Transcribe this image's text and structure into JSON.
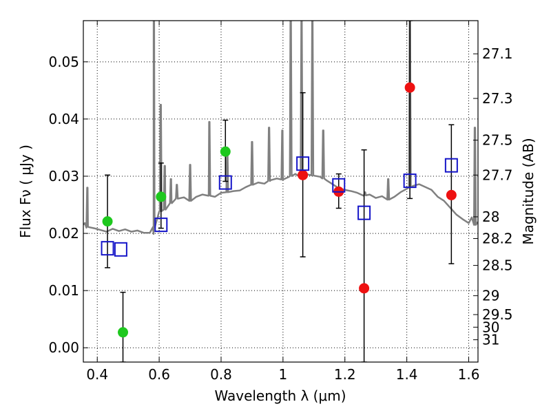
{
  "chart_data": {
    "type": "scatter",
    "xlabel": "Wavelength  λ (μm)",
    "ylabel": "Flux  Fν  ( μJy )",
    "ylabel_right": "Magnitude (AB)",
    "xlim": [
      0.355,
      1.63
    ],
    "ylim": [
      -0.0025,
      0.0572
    ],
    "x_ticks": [
      0.4,
      0.6,
      0.8,
      1.0,
      1.2,
      1.4,
      1.6
    ],
    "x_tick_labels": [
      "0.4",
      "0.6",
      "0.8",
      "1",
      "1.2",
      "1.4",
      "1.6"
    ],
    "y_ticks": [
      0.0,
      0.01,
      0.02,
      0.03,
      0.04,
      0.05
    ],
    "y_tick_labels": [
      "0.00",
      "0.01",
      "0.02",
      "0.03",
      "0.04",
      "0.05"
    ],
    "right_ticks": [
      {
        "label": "27.1",
        "flux": 0.0514
      },
      {
        "label": "27.3",
        "flux": 0.0436
      },
      {
        "label": "27.5",
        "flux": 0.0363
      },
      {
        "label": "27.7",
        "flux": 0.0302
      },
      {
        "label": "28",
        "flux": 0.0229
      },
      {
        "label": "28.2",
        "flux": 0.0191
      },
      {
        "label": "28.5",
        "flux": 0.0144
      },
      {
        "label": "29",
        "flux": 0.0091
      },
      {
        "label": "29.5",
        "flux": 0.0058
      },
      {
        "label": "30",
        "flux": 0.0036
      },
      {
        "label": "31",
        "flux": 0.0014
      }
    ],
    "grid": true,
    "colors": {
      "green": "#1ec81e",
      "red": "#ee1111",
      "blue": "#1414c8",
      "model": "#808080",
      "error": "#000000"
    },
    "model_spectrum": {
      "x": [
        0.355,
        0.36,
        0.365,
        0.37,
        0.39,
        0.41,
        0.43,
        0.45,
        0.47,
        0.49,
        0.51,
        0.53,
        0.55,
        0.57,
        0.582,
        0.585,
        0.6,
        0.62,
        0.64,
        0.66,
        0.68,
        0.7,
        0.72,
        0.74,
        0.76,
        0.78,
        0.8,
        0.82,
        0.84,
        0.86,
        0.88,
        0.9,
        0.92,
        0.94,
        0.96,
        0.98,
        1.0,
        1.02,
        1.04,
        1.06,
        1.08,
        1.1,
        1.12,
        1.14,
        1.16,
        1.18,
        1.2,
        1.22,
        1.24,
        1.26,
        1.28,
        1.3,
        1.32,
        1.34,
        1.36,
        1.38,
        1.4,
        1.42,
        1.44,
        1.46,
        1.48,
        1.5,
        1.52,
        1.54,
        1.56,
        1.58,
        1.6,
        1.61,
        1.62,
        1.63
      ],
      "y": [
        0.0215,
        0.0218,
        0.021,
        0.0212,
        0.0209,
        0.0206,
        0.0203,
        0.0208,
        0.0204,
        0.0207,
        0.0203,
        0.0205,
        0.0201,
        0.0201,
        0.0199,
        0.0235,
        0.0238,
        0.0242,
        0.0254,
        0.0262,
        0.0263,
        0.0257,
        0.0264,
        0.0268,
        0.0266,
        0.0264,
        0.0271,
        0.0272,
        0.0274,
        0.0275,
        0.0281,
        0.0285,
        0.0289,
        0.0287,
        0.0293,
        0.0296,
        0.0294,
        0.0299,
        0.0304,
        0.0298,
        0.0303,
        0.0301,
        0.0299,
        0.0293,
        0.0286,
        0.0279,
        0.0276,
        0.0274,
        0.0271,
        0.0266,
        0.0268,
        0.0262,
        0.0265,
        0.0259,
        0.0264,
        0.0272,
        0.0278,
        0.0283,
        0.0286,
        0.0281,
        0.0276,
        0.0264,
        0.0257,
        0.0245,
        0.0233,
        0.0225,
        0.0218,
        0.0228,
        0.0215,
        0.022
      ],
      "spikes": [
        {
          "x": 0.368,
          "peak": 0.028
        },
        {
          "x": 0.583,
          "peak": 0.0572
        },
        {
          "x": 0.605,
          "peak": 0.0425
        },
        {
          "x": 0.618,
          "peak": 0.0318
        },
        {
          "x": 0.638,
          "peak": 0.0295
        },
        {
          "x": 0.657,
          "peak": 0.0285
        },
        {
          "x": 0.7,
          "peak": 0.032
        },
        {
          "x": 0.762,
          "peak": 0.0395
        },
        {
          "x": 0.82,
          "peak": 0.035
        },
        {
          "x": 0.9,
          "peak": 0.036
        },
        {
          "x": 0.955,
          "peak": 0.0385
        },
        {
          "x": 0.998,
          "peak": 0.038
        },
        {
          "x": 1.025,
          "peak": 0.0572
        },
        {
          "x": 1.06,
          "peak": 0.0572
        },
        {
          "x": 1.095,
          "peak": 0.0572
        },
        {
          "x": 1.13,
          "peak": 0.038
        },
        {
          "x": 1.265,
          "peak": 0.0272
        },
        {
          "x": 1.34,
          "peak": 0.0295
        },
        {
          "x": 1.41,
          "peak": 0.0572
        },
        {
          "x": 1.62,
          "peak": 0.0385
        }
      ]
    },
    "error_bars": [
      {
        "x": 0.433,
        "low": 0.014,
        "high": 0.0302
      },
      {
        "x": 0.483,
        "low": -0.0025,
        "high": 0.0097
      },
      {
        "x": 0.606,
        "low": 0.0209,
        "high": 0.0323
      },
      {
        "x": 0.814,
        "low": 0.0291,
        "high": 0.0398
      },
      {
        "x": 1.064,
        "low": 0.0159,
        "high": 0.0446
      },
      {
        "x": 1.18,
        "low": 0.0244,
        "high": 0.0304
      },
      {
        "x": 1.262,
        "low": -0.0025,
        "high": 0.0346
      },
      {
        "x": 1.41,
        "low": 0.0261,
        "high": 0.0572
      },
      {
        "x": 1.544,
        "low": 0.0147,
        "high": 0.039
      }
    ],
    "series": [
      {
        "marker": "circle",
        "color": "#1ec81e",
        "points": [
          {
            "x": 0.433,
            "y": 0.0221
          },
          {
            "x": 0.483,
            "y": 0.0027
          },
          {
            "x": 0.606,
            "y": 0.0264
          },
          {
            "x": 0.814,
            "y": 0.0343
          }
        ]
      },
      {
        "marker": "circle",
        "color": "#ee1111",
        "points": [
          {
            "x": 1.064,
            "y": 0.0302
          },
          {
            "x": 1.18,
            "y": 0.0273
          },
          {
            "x": 1.262,
            "y": 0.0104
          },
          {
            "x": 1.41,
            "y": 0.0455
          },
          {
            "x": 1.544,
            "y": 0.0267
          }
        ]
      },
      {
        "marker": "open-square",
        "color": "#1414c8",
        "points": [
          {
            "x": 0.433,
            "y": 0.0174
          },
          {
            "x": 0.476,
            "y": 0.0172
          },
          {
            "x": 0.606,
            "y": 0.0215
          },
          {
            "x": 0.814,
            "y": 0.0289
          },
          {
            "x": 1.064,
            "y": 0.0322
          },
          {
            "x": 1.18,
            "y": 0.0284
          },
          {
            "x": 1.262,
            "y": 0.0236
          },
          {
            "x": 1.41,
            "y": 0.0292
          },
          {
            "x": 1.544,
            "y": 0.0319
          }
        ]
      }
    ]
  }
}
